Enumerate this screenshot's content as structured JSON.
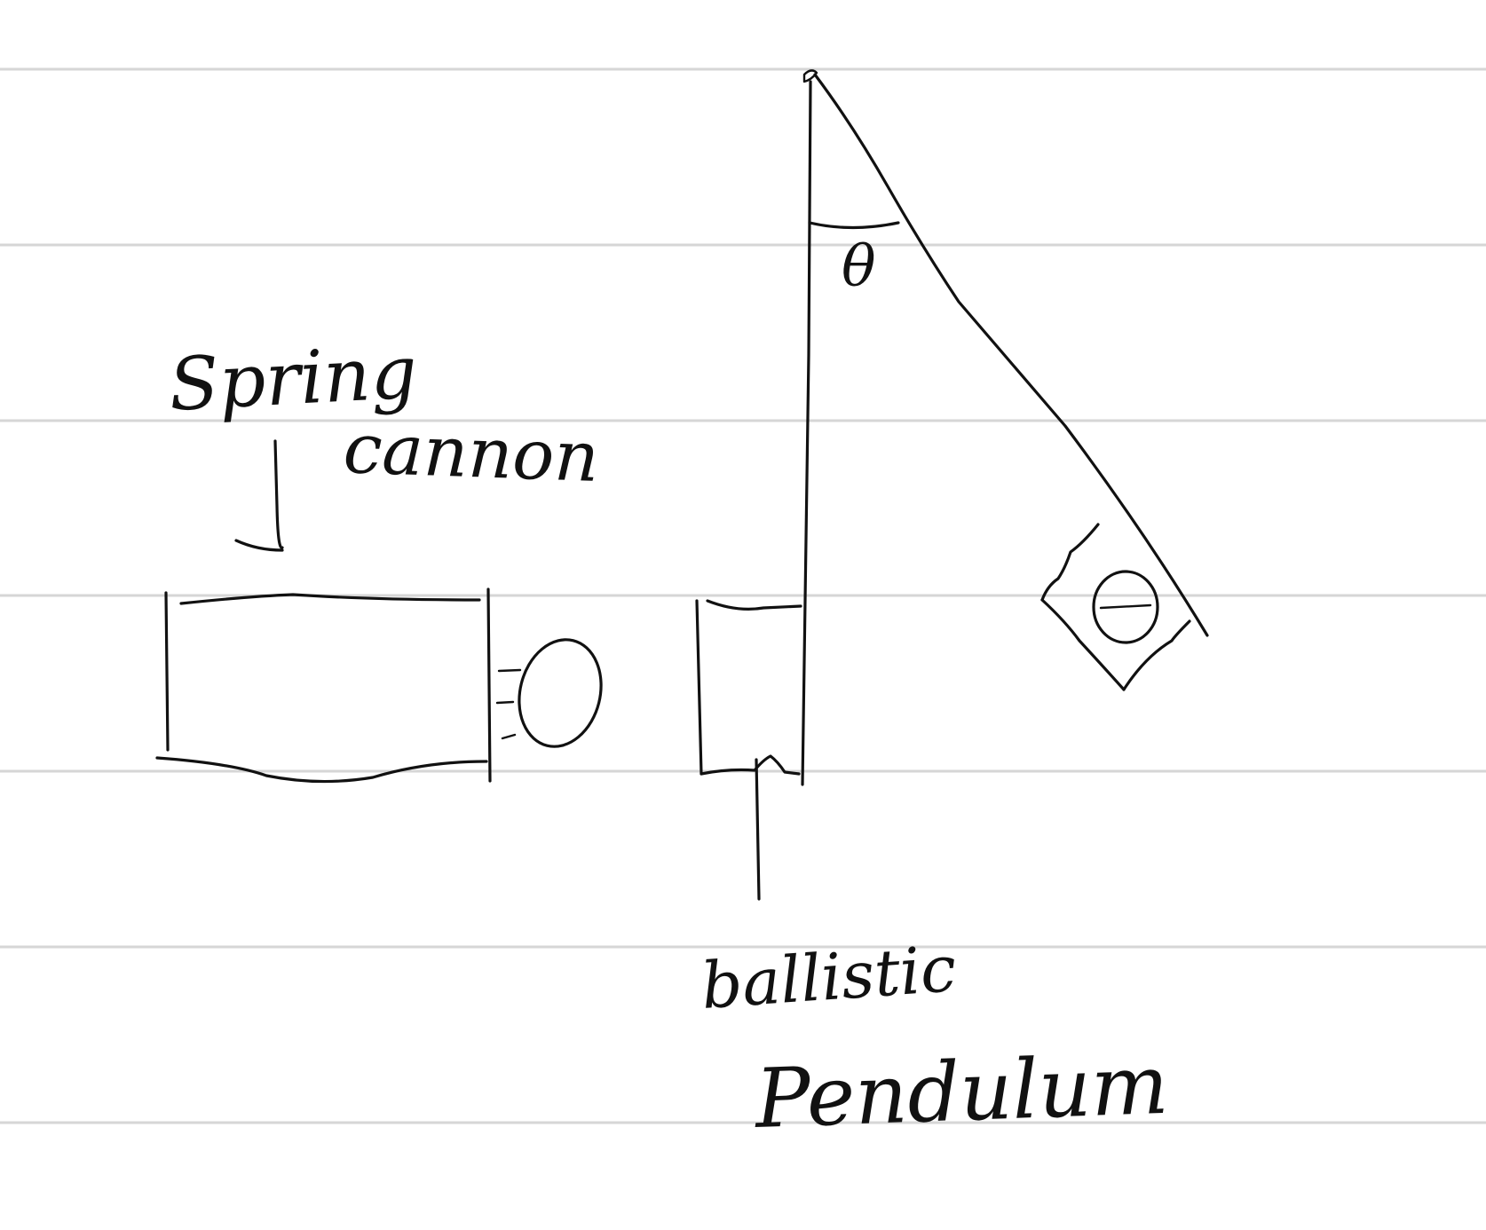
{
  "diagram": {
    "labels": {
      "spring": "Spring",
      "cannon": "cannon",
      "ballistic": "ballistic",
      "pendulum": "Pendulum",
      "angle": "θ"
    }
  },
  "colors": {
    "paper": "#ffffff",
    "ruling": "#d6d6d6",
    "ink": "#111111"
  }
}
